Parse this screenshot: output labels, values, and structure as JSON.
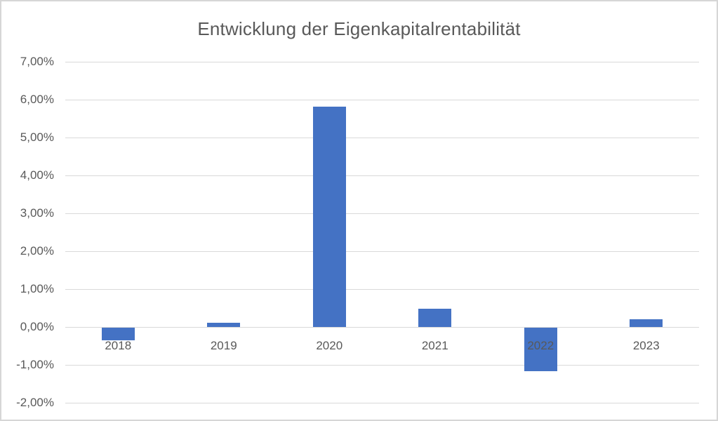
{
  "chart_data": {
    "type": "bar",
    "title": "Entwicklung der Eigenkapitalrentabilität",
    "categories": [
      "2018",
      "2019",
      "2020",
      "2021",
      "2022",
      "2023"
    ],
    "values": [
      -0.33,
      0.12,
      5.82,
      0.48,
      -1.14,
      0.21
    ],
    "value_unit": "percent",
    "xlabel": "",
    "ylabel": "",
    "ylim": [
      -2,
      7
    ],
    "grid": true,
    "legend": "none",
    "y_ticks": [
      {
        "value": 7,
        "label": "7,00%"
      },
      {
        "value": 6,
        "label": "6,00%"
      },
      {
        "value": 5,
        "label": "5,00%"
      },
      {
        "value": 4,
        "label": "4,00%"
      },
      {
        "value": 3,
        "label": "3,00%"
      },
      {
        "value": 2,
        "label": "2,00%"
      },
      {
        "value": 1,
        "label": "1,00%"
      },
      {
        "value": 0,
        "label": "0,00%"
      },
      {
        "value": -1,
        "label": "-1,00%"
      },
      {
        "value": -2,
        "label": "-2,00%"
      }
    ],
    "colors": {
      "bar": "#4472C4",
      "text": "#595959",
      "gridline": "#D9D9D9",
      "border": "#D6D6D6",
      "background": "#FFFFFF"
    }
  }
}
